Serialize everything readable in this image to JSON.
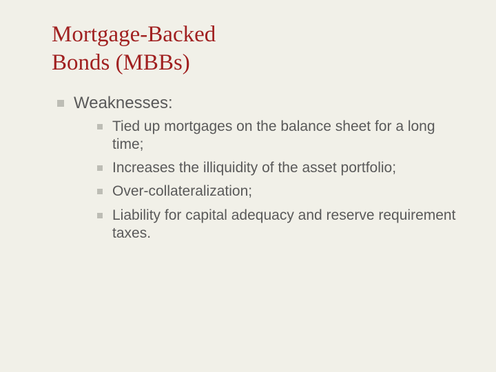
{
  "colors": {
    "background": "#f1f0e8",
    "title": "#a02020",
    "body_text": "#595959",
    "bullet": "#bdbdb5"
  },
  "typography": {
    "title_font": "Times New Roman, serif",
    "title_size_pt": 25,
    "body_font": "Arial, sans-serif",
    "l1_size_pt": 18,
    "l2_size_pt": 16
  },
  "title_line1": "Mortgage-Backed",
  "title_line2": "Bonds (MBBs)",
  "l1": {
    "item0": "Weaknesses:"
  },
  "l2": {
    "item0": "Tied up mortgages on the balance sheet for a long time;",
    "item1": "Increases the illiquidity of the asset portfolio;",
    "item2": "Over-collateralization;",
    "item3": "Liability for capital adequacy and reserve requirement taxes."
  }
}
